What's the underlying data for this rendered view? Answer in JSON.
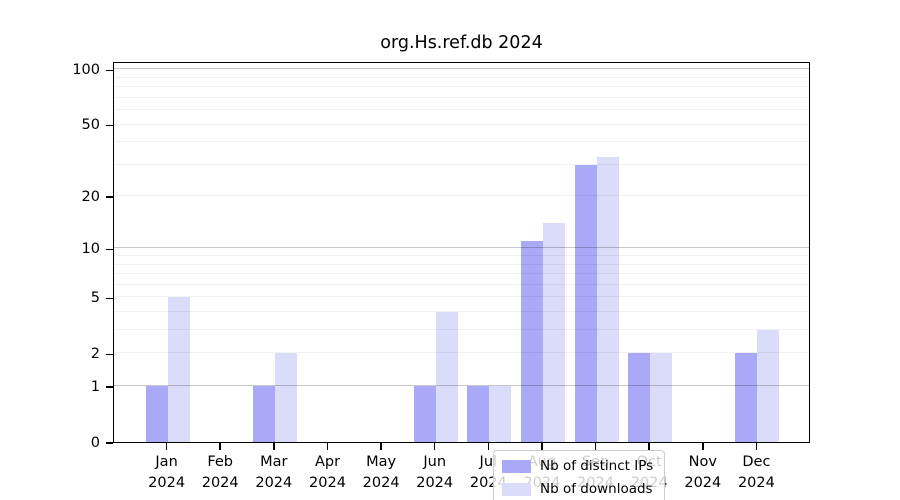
{
  "title": "org.Hs.ref.db 2024",
  "chart_data": {
    "type": "bar",
    "title": "org.Hs.ref.db 2024",
    "xlabel": "",
    "ylabel": "",
    "categories": [
      "Jan 2024",
      "Feb 2024",
      "Mar 2024",
      "Apr 2024",
      "May 2024",
      "Jun 2024",
      "Jul 2024",
      "Aug 2024",
      "Sep 2024",
      "Oct 2024",
      "Nov 2024",
      "Dec 2024"
    ],
    "series": [
      {
        "name": "Nb of distinct IPs",
        "color": "#a9a9f8",
        "values": [
          1,
          0,
          1,
          0,
          0,
          1,
          1,
          11,
          30,
          2,
          0,
          2
        ]
      },
      {
        "name": "Nb of downloads",
        "color": "#dbdbfa",
        "values": [
          5,
          0,
          2,
          0,
          0,
          4,
          1,
          14,
          33,
          2,
          0,
          3
        ]
      }
    ],
    "y_scale": "log1p",
    "y_max": 111,
    "y_ticks": [
      0,
      1,
      2,
      5,
      10,
      20,
      50,
      100
    ],
    "grid": {
      "major": [
        1,
        10,
        100
      ],
      "minor": [
        2,
        3,
        4,
        5,
        6,
        7,
        8,
        9,
        20,
        30,
        40,
        50,
        60,
        70,
        80,
        90
      ]
    },
    "legend_position": "bottom-center-inside",
    "grid_on": true
  },
  "legend": {
    "items": [
      {
        "label": "Nb of distinct IPs",
        "color": "#a9a9f8"
      },
      {
        "label": "Nb of downloads",
        "color": "#dbdbfa"
      }
    ]
  },
  "colors": {
    "background": "#ffffff",
    "axis_frame": "#000000",
    "grid_major": "#c9c9c9",
    "grid_minor": "#f0f0f0",
    "text": "#000000"
  }
}
